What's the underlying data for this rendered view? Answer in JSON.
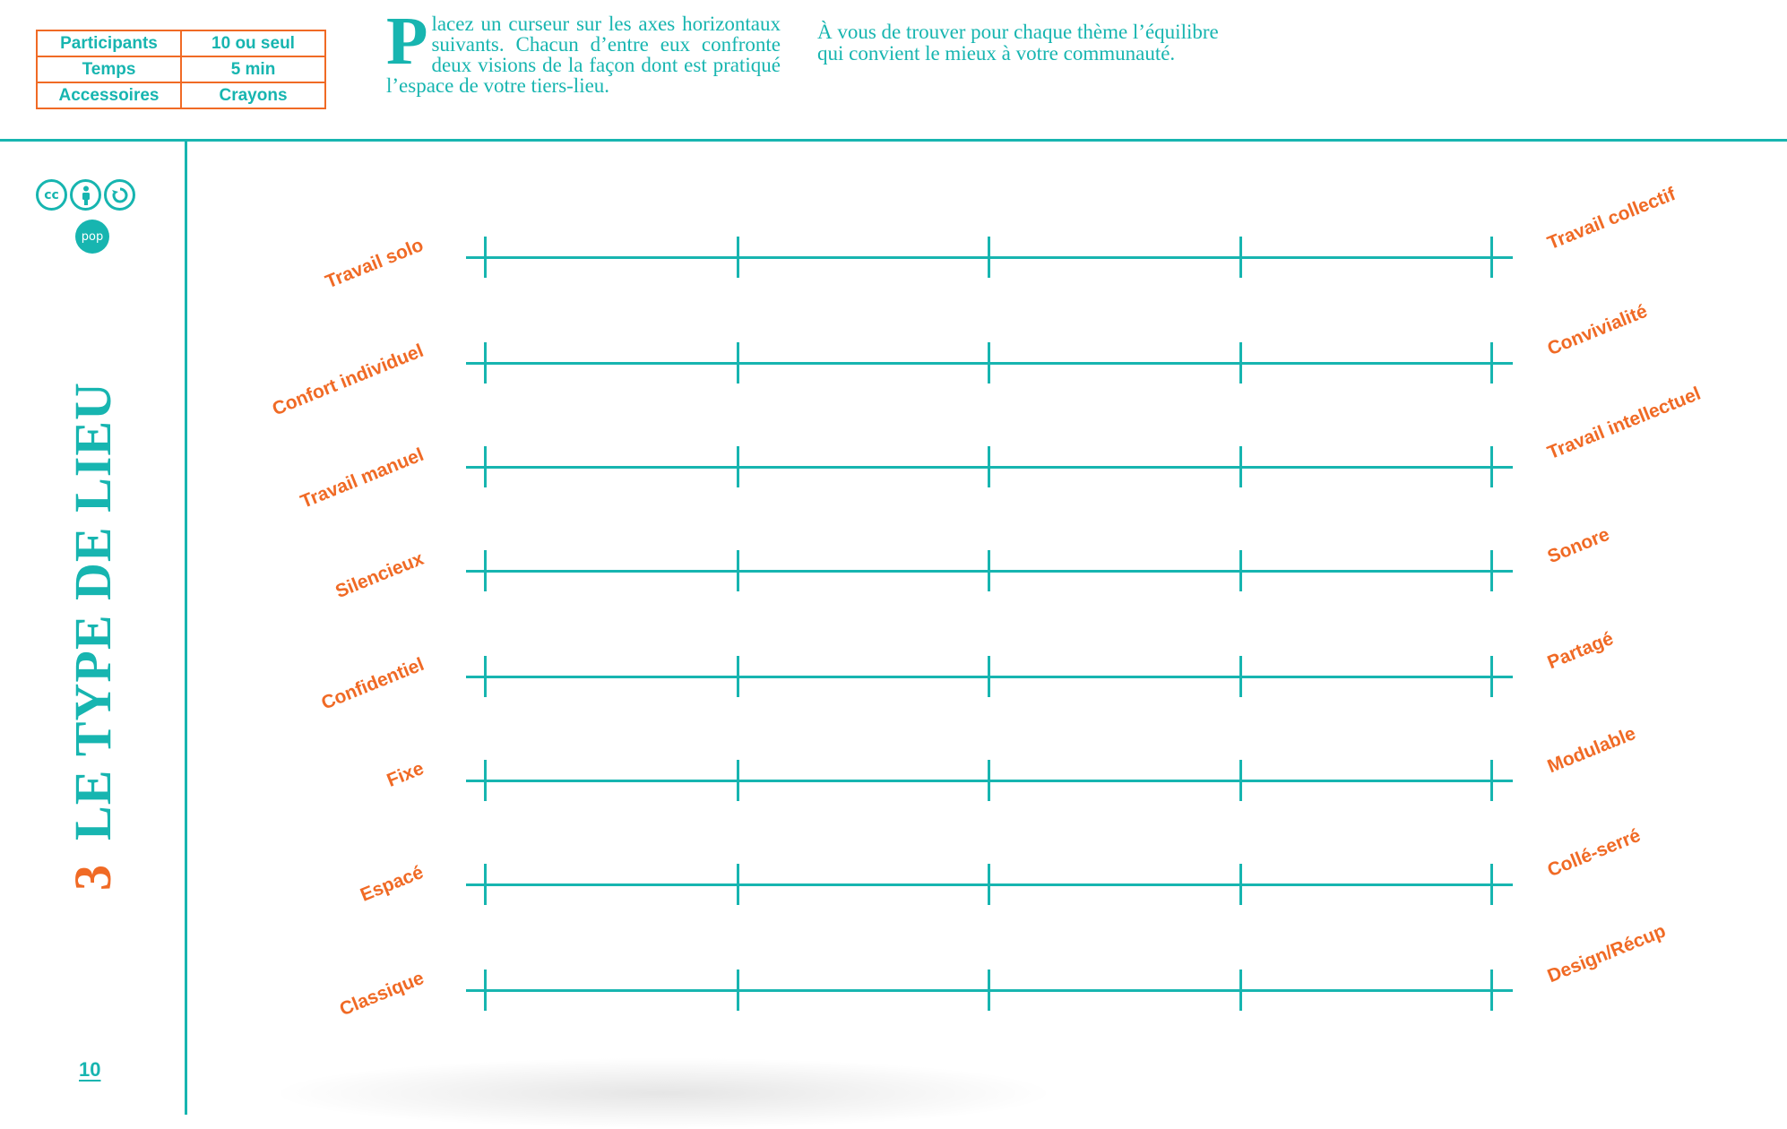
{
  "info_table": [
    {
      "label": "Participants",
      "value": "10 ou seul"
    },
    {
      "label": "Temps",
      "value": "5 min"
    },
    {
      "label": "Accessoires",
      "value": "Crayons"
    }
  ],
  "intro": {
    "dropcap": "P",
    "text": "lacez un curseur sur les axes horizontaux suivants. Chacun d’entre eux confronte deux visions de la façon dont est pratiqué l’espace de votre tiers-lieu.",
    "text2": "À vous de trouver pour chaque thème l’équilibre qui convient le mieux à votre communauté."
  },
  "license": {
    "badges": [
      "cc",
      "by",
      "sa"
    ],
    "icons": [
      "cc-icon",
      "by-icon",
      "sa-icon"
    ],
    "pop": "pop"
  },
  "section": {
    "number": "3",
    "title": "LE TYPE DE LIEU"
  },
  "page_number": "10",
  "axes": [
    {
      "left": "Travail solo",
      "right": "Travail collectif"
    },
    {
      "left": "Confort individuel",
      "right": "Convivialité"
    },
    {
      "left": "Travail manuel",
      "right": "Travail intellectuel"
    },
    {
      "left": "Silencieux",
      "right": "Sonore"
    },
    {
      "left": "Confidentiel",
      "right": "Partagé"
    },
    {
      "left": "Fixe",
      "right": "Modulable"
    },
    {
      "left": "Espacé",
      "right": "Collé-serré"
    },
    {
      "left": "Classique",
      "right": "Design/Récup"
    }
  ],
  "colors": {
    "teal": "#17b5b0",
    "orange": "#f06a25"
  }
}
